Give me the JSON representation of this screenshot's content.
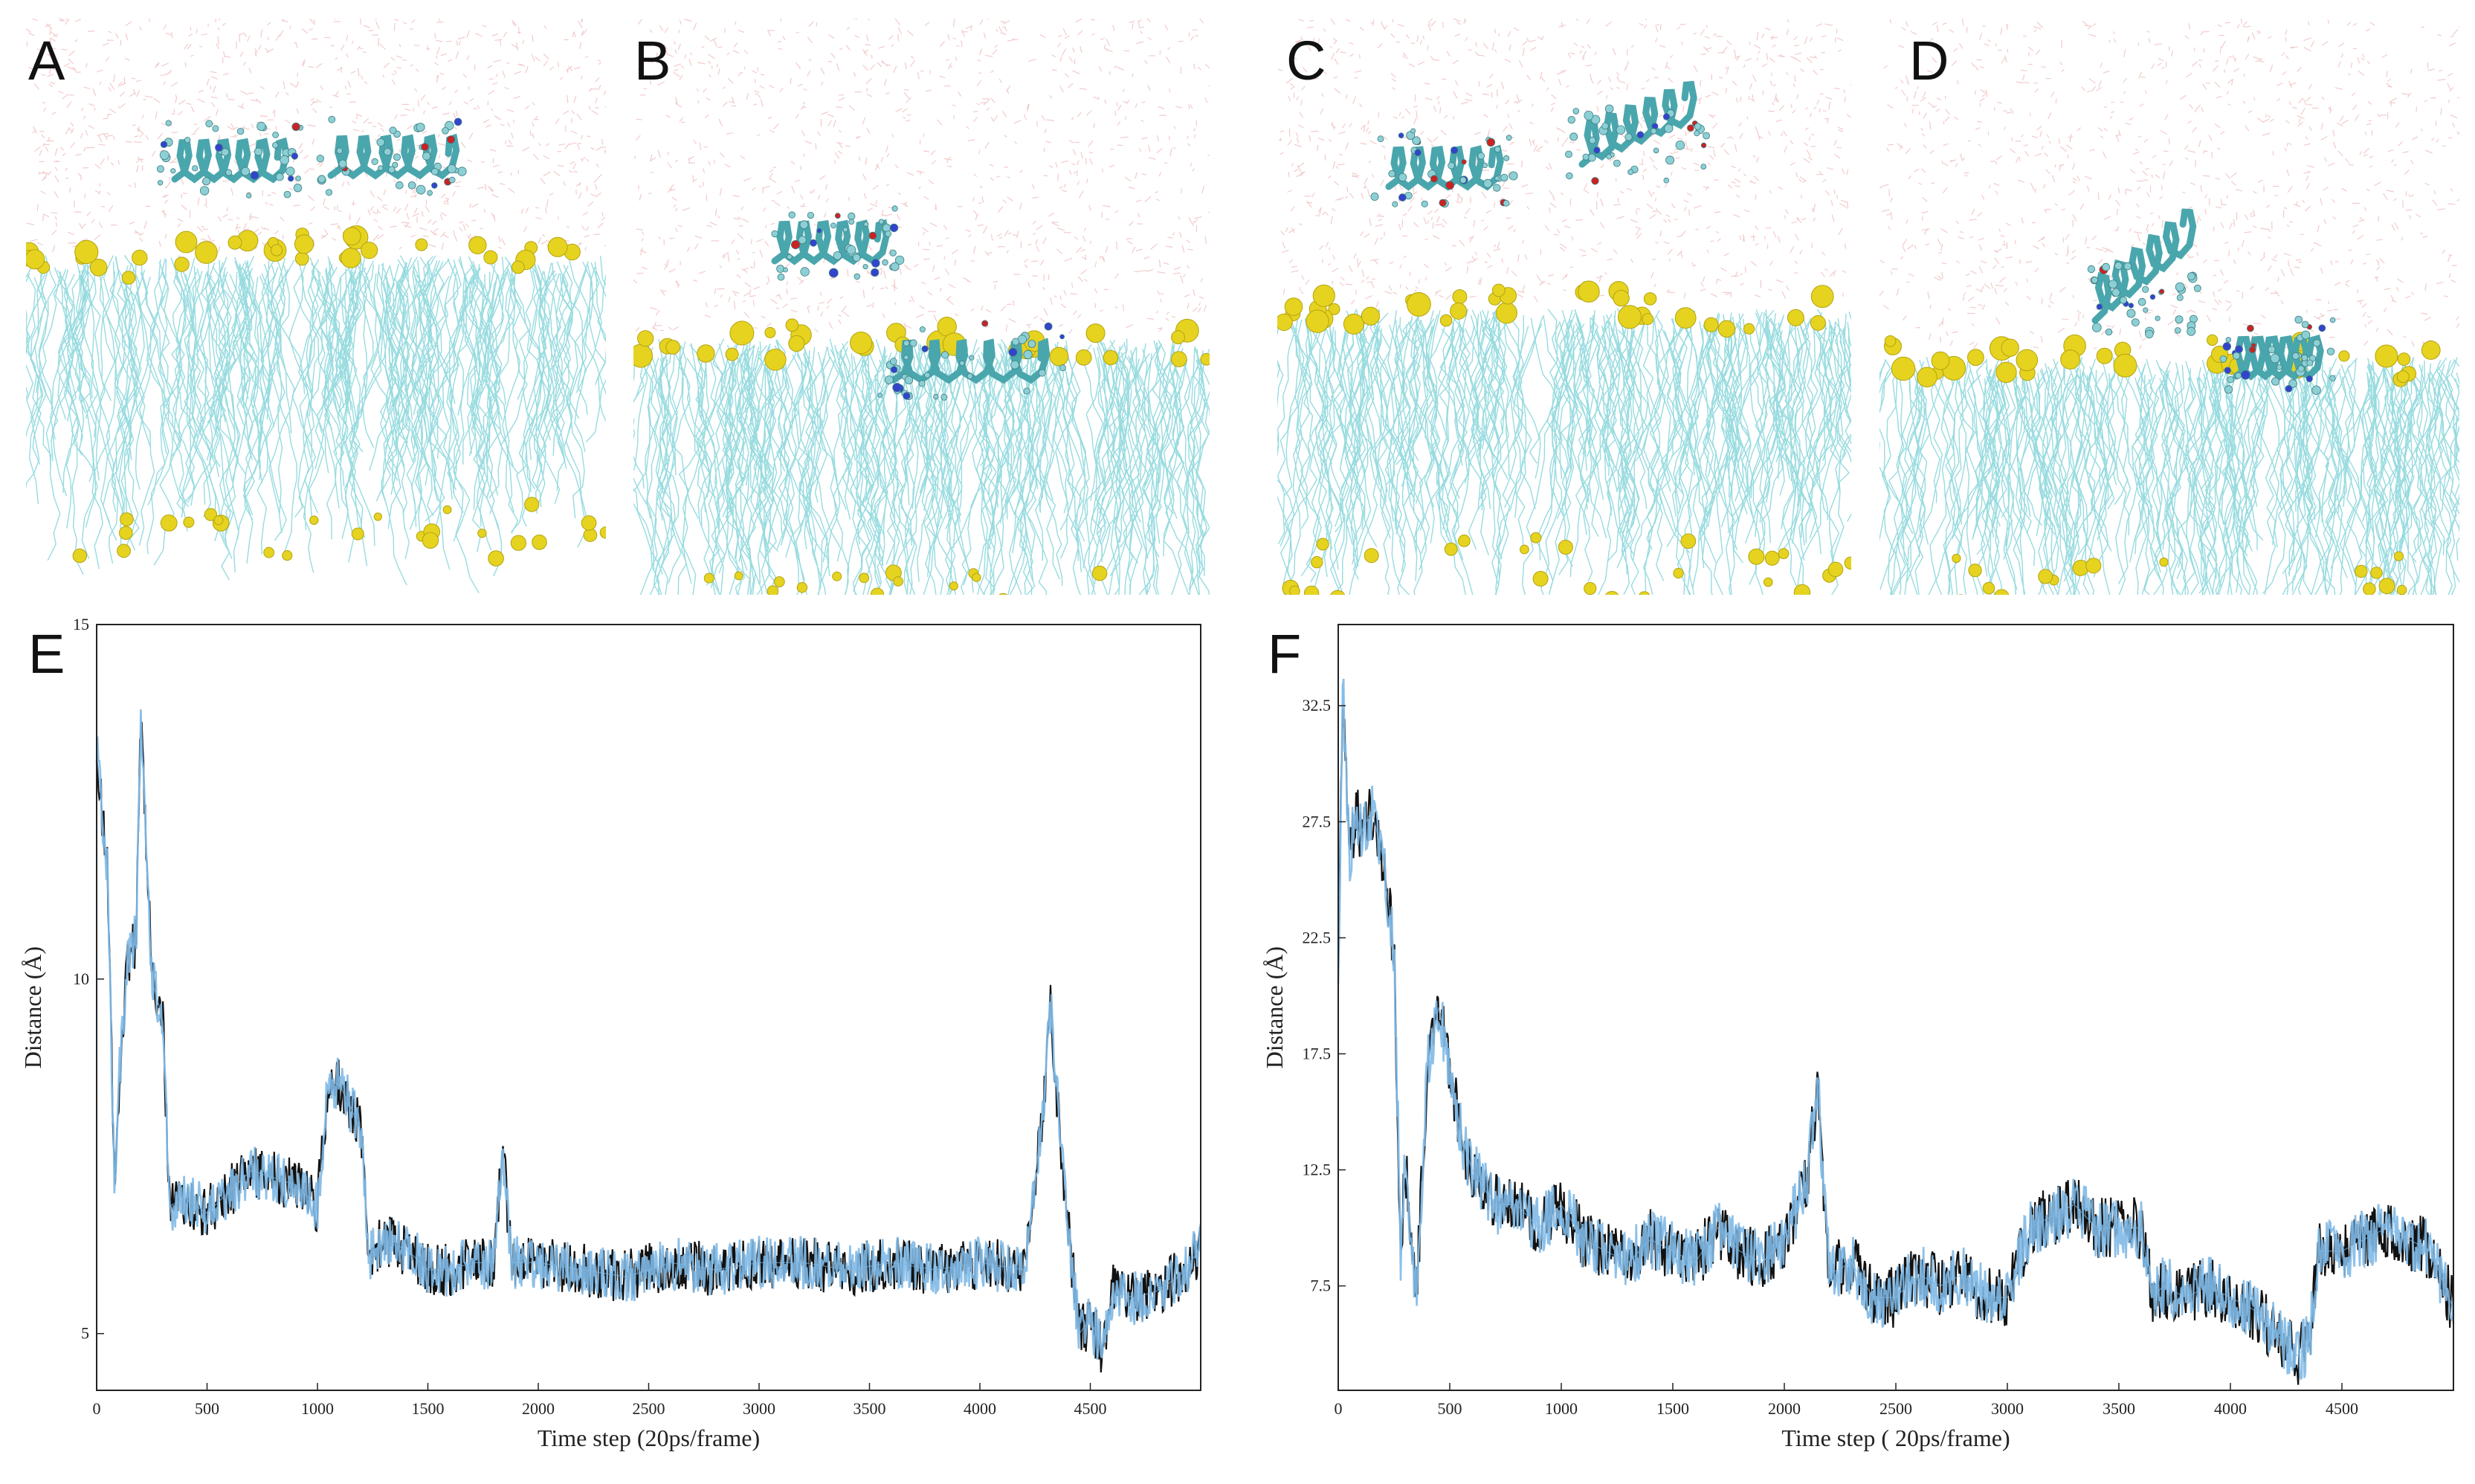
{
  "panels": {
    "A": {
      "label": "A"
    },
    "B": {
      "label": "B"
    },
    "C": {
      "label": "C"
    },
    "D": {
      "label": "D"
    },
    "E": {
      "label": "E"
    },
    "F": {
      "label": "F"
    }
  },
  "colors": {
    "lipid": "#7fd3d8",
    "water": "#e8a0a0",
    "phosphate": "#e6d320",
    "peptide": "#4aa6ad",
    "trace_dark": "#111111",
    "trace_light": "#7fb9e6"
  },
  "chart_data": [
    {
      "type": "line",
      "title": "",
      "xlabel": "Time step (20ps/frame)",
      "ylabel": "Distance (Å)",
      "xlim": [
        0,
        5000
      ],
      "ylim": [
        4.2,
        15
      ],
      "xticks": [
        0,
        500,
        1000,
        1500,
        2000,
        2500,
        3000,
        3500,
        4000,
        4500
      ],
      "xtick_labels": [
        "0",
        "500",
        "1000",
        "1500",
        "2000",
        "2500",
        "3000",
        "3500",
        "4000",
        "4500"
      ],
      "yticks": [
        5,
        10,
        15
      ],
      "ytick_labels": [
        "5",
        "10",
        "15"
      ],
      "series": [
        {
          "name": "distance",
          "x": [
            0,
            50,
            80,
            100,
            140,
            180,
            200,
            250,
            300,
            330,
            400,
            500,
            600,
            700,
            800,
            900,
            1000,
            1050,
            1100,
            1150,
            1200,
            1230,
            1300,
            1400,
            1500,
            1600,
            1700,
            1800,
            1840,
            1880,
            2000,
            2200,
            2400,
            2600,
            2800,
            3000,
            3200,
            3400,
            3600,
            3800,
            4000,
            4200,
            4280,
            4320,
            4350,
            4400,
            4450,
            4500,
            4550,
            4600,
            4700,
            4800,
            4900,
            5000
          ],
          "values": [
            13.2,
            11.5,
            7.2,
            8.5,
            10.2,
            10.6,
            13.8,
            10.0,
            9.4,
            6.8,
            6.9,
            6.7,
            7.0,
            7.3,
            7.2,
            7.1,
            6.8,
            8.6,
            8.5,
            8.2,
            7.8,
            6.1,
            6.3,
            6.2,
            5.9,
            5.9,
            6.0,
            6.0,
            7.6,
            6.0,
            6.0,
            5.9,
            5.8,
            6.0,
            5.9,
            6.0,
            6.0,
            5.9,
            6.0,
            5.9,
            6.0,
            5.9,
            8.0,
            9.6,
            8.3,
            6.5,
            5.0,
            5.2,
            4.8,
            5.6,
            5.5,
            5.6,
            5.8,
            6.2
          ]
        }
      ]
    },
    {
      "type": "line",
      "title": "",
      "xlabel": "Time step ( 20ps/frame)",
      "ylabel": "Distance (Å)",
      "xlim": [
        0,
        5000
      ],
      "ylim": [
        3,
        36
      ],
      "xticks": [
        0,
        500,
        1000,
        1500,
        2000,
        2500,
        3000,
        3500,
        4000,
        4500
      ],
      "xtick_labels": [
        "0",
        "500",
        "1000",
        "1500",
        "2000",
        "2500",
        "3000",
        "3500",
        "4000",
        "4500"
      ],
      "yticks": [
        7.5,
        12.5,
        17.5,
        22.5,
        27.5,
        32.5
      ],
      "ytick_labels": [
        "7.5",
        "12.5",
        "17.5",
        "22.5",
        "27.5",
        "32.5"
      ],
      "series": [
        {
          "name": "distance",
          "x": [
            0,
            20,
            50,
            80,
            100,
            150,
            200,
            250,
            280,
            300,
            350,
            400,
            450,
            500,
            550,
            600,
            700,
            800,
            900,
            1000,
            1100,
            1200,
            1300,
            1400,
            1500,
            1600,
            1700,
            1800,
            1900,
            2000,
            2100,
            2150,
            2200,
            2300,
            2400,
            2500,
            2600,
            2700,
            2800,
            2900,
            3000,
            3100,
            3200,
            3300,
            3400,
            3500,
            3600,
            3650,
            3700,
            3800,
            3900,
            4000,
            4100,
            4200,
            4300,
            4350,
            4400,
            4500,
            4600,
            4700,
            4800,
            4900,
            5000
          ],
          "values": [
            21,
            33.5,
            26,
            28,
            27,
            28,
            26,
            22,
            9,
            13,
            7,
            17,
            19.5,
            17,
            14,
            12.5,
            11,
            11,
            10,
            11,
            9.5,
            9,
            8.5,
            9.5,
            9,
            8.5,
            10,
            9,
            8.5,
            9.5,
            12,
            16,
            8,
            8.5,
            7,
            7,
            8,
            7.5,
            8,
            7,
            7,
            10,
            10.5,
            11,
            10,
            10,
            10,
            7,
            7.5,
            7,
            7.5,
            7,
            6.5,
            5.5,
            4.5,
            5,
            9,
            9,
            9.5,
            10,
            9.5,
            9,
            6.5
          ]
        }
      ]
    }
  ]
}
